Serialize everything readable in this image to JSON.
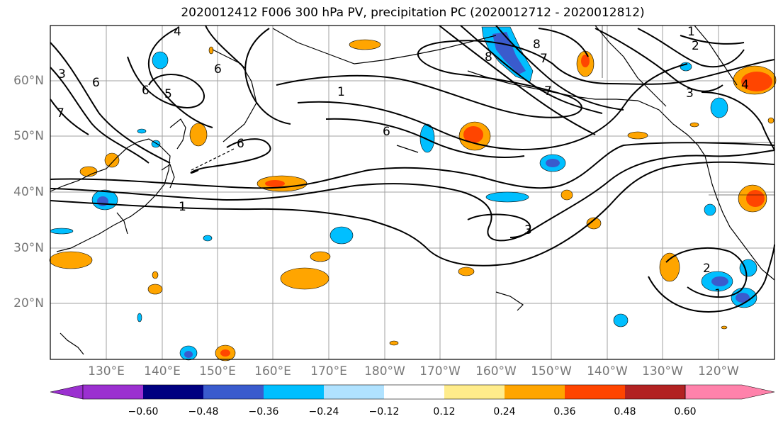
{
  "title": "2020012412 F006 300 hPa PV, precipitation PC (2020012712 - 2020012812)",
  "lat_labels": [
    "60°N",
    "50°N",
    "40°N",
    "30°N",
    "20°N"
  ],
  "lon_labels": [
    "130°E",
    "140°E",
    "150°E",
    "160°E",
    "170°E",
    "180°W",
    "170°W",
    "160°W",
    "150°W",
    "140°W",
    "130°W",
    "120°W"
  ],
  "contour_labels": [
    "4",
    "6",
    "5",
    "3",
    "7",
    "6",
    "1",
    "6",
    "1",
    "8",
    "7",
    "8",
    "7",
    "6",
    "1",
    "2",
    "3",
    "4",
    "3",
    "2",
    "1",
    "6"
  ],
  "colorbar": {
    "tick_labels": [
      "−0.60",
      "−0.48",
      "−0.36",
      "−0.24",
      "−0.12",
      "0.12",
      "0.24",
      "0.36",
      "0.48",
      "0.60"
    ],
    "colors": [
      "#9b30d0",
      "#000080",
      "#3a5bcd",
      "#00bfff",
      "#b0e2ff",
      "#ffffff",
      "#ffec8b",
      "#ffa500",
      "#ff4500",
      "#b22222",
      "#ff82ab"
    ]
  }
}
